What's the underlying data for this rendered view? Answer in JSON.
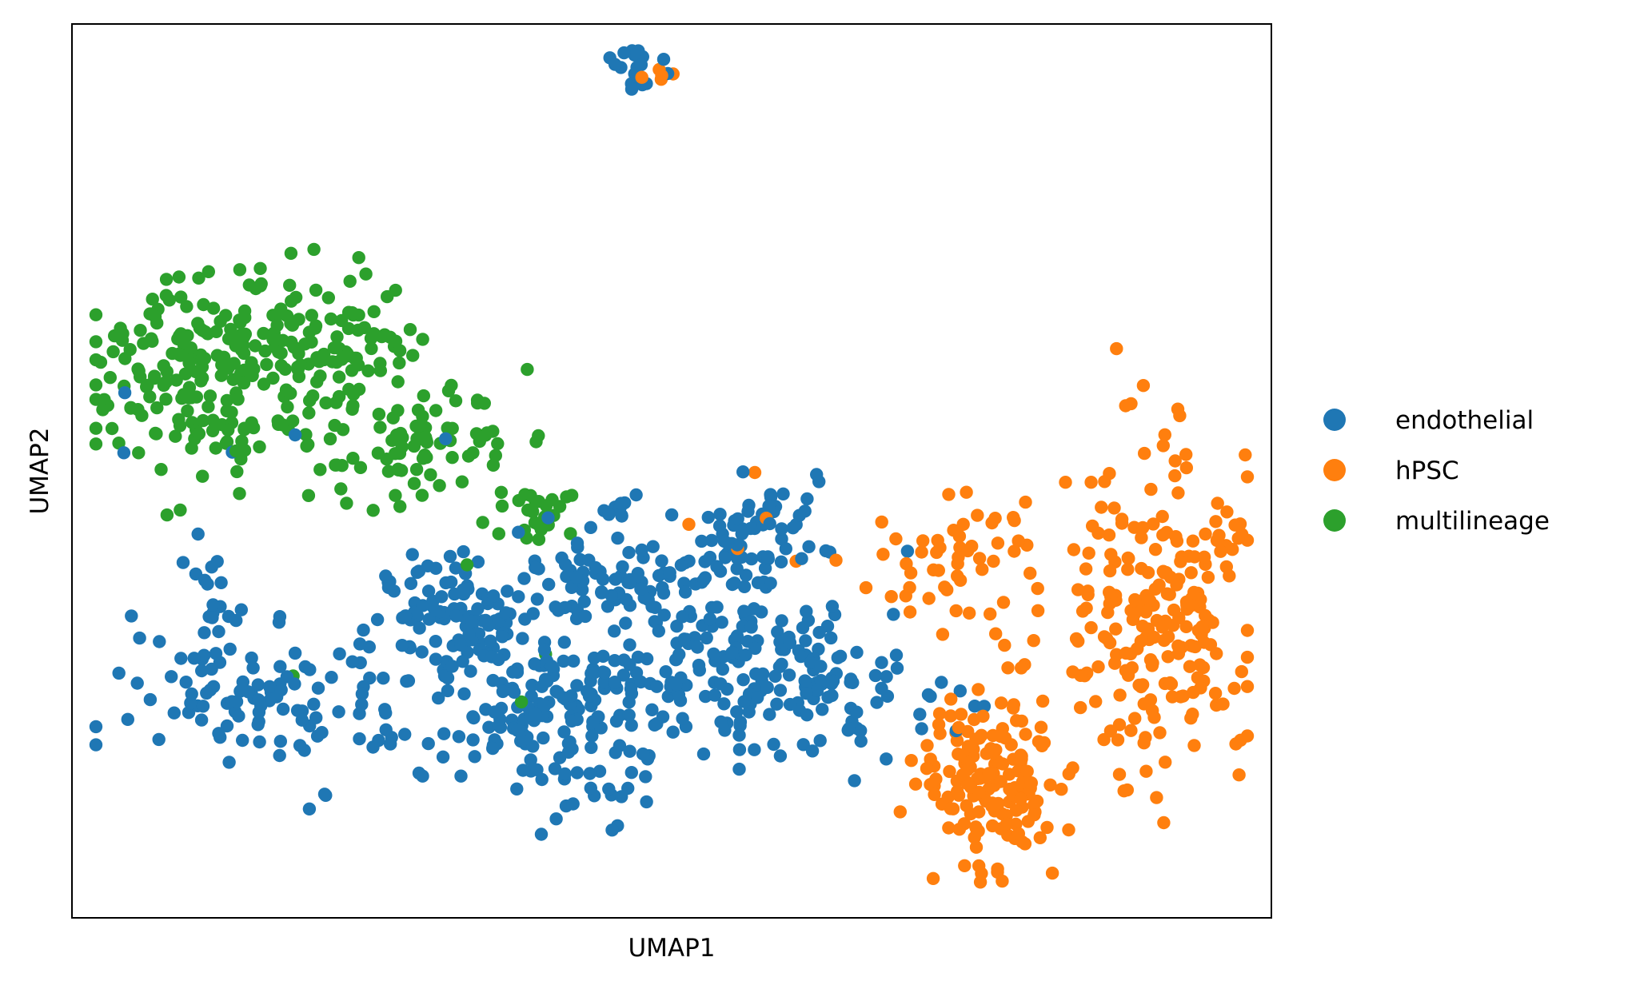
{
  "chart_data": {
    "type": "scatter",
    "title": "",
    "xlabel": "UMAP1",
    "ylabel": "UMAP2",
    "xlim": [
      0,
      100
    ],
    "ylim": [
      0,
      100
    ],
    "ticks": false,
    "grid": false,
    "legend_position": "right",
    "series": [
      {
        "name": "endothelial",
        "color": "#1f77b4"
      },
      {
        "name": "hPSC",
        "color": "#ff7f0e"
      },
      {
        "name": "multilineage",
        "color": "#2ca02c"
      }
    ],
    "clusters": [
      {
        "series": 1,
        "cx": 75,
        "cy": 40,
        "sx": 3.2,
        "sy": 4.5,
        "n": 50
      },
      {
        "series": 1,
        "cx": 76.5,
        "cy": 16,
        "sx": 3.0,
        "sy": 5.0,
        "n": 160
      },
      {
        "series": 1,
        "cx": 91,
        "cy": 34,
        "sx": 4.0,
        "sy": 8.5,
        "n": 230
      },
      {
        "series": 1,
        "cx": 62,
        "cy": 41,
        "sx": 8,
        "sy": 4,
        "n": 6
      },
      {
        "series": 1,
        "cx": 48.5,
        "cy": 94.6,
        "sx": 0.8,
        "sy": 0.6,
        "n": 5
      },
      {
        "series": 0,
        "cx": 46.5,
        "cy": 95.0,
        "sx": 1.0,
        "sy": 1.5,
        "n": 18
      },
      {
        "series": 0,
        "cx": 16,
        "cy": 24.5,
        "sx": 5.5,
        "sy": 4.5,
        "n": 110
      },
      {
        "series": 0,
        "cx": 11.5,
        "cy": 36,
        "sx": 1.5,
        "sy": 4.0,
        "n": 18
      },
      {
        "series": 0,
        "cx": 32,
        "cy": 33,
        "sx": 3.5,
        "sy": 3.8,
        "n": 110
      },
      {
        "series": 0,
        "cx": 40,
        "cy": 22.5,
        "sx": 5.0,
        "sy": 5.0,
        "n": 160
      },
      {
        "series": 0,
        "cx": 56,
        "cy": 29,
        "sx": 5.5,
        "sy": 5.0,
        "n": 170
      },
      {
        "series": 0,
        "cx": 45,
        "cy": 38,
        "sx": 5.0,
        "sy": 3.0,
        "n": 90
      },
      {
        "series": 0,
        "cx": 57,
        "cy": 42,
        "sx": 3.0,
        "sy": 3.0,
        "n": 60
      },
      {
        "series": 0,
        "cx": 66,
        "cy": 24,
        "sx": 3.5,
        "sy": 4.0,
        "n": 40
      },
      {
        "series": 0,
        "cx": 45.5,
        "cy": 46,
        "sx": 0.9,
        "sy": 1.0,
        "n": 7
      },
      {
        "series": 0,
        "cx": 12,
        "cy": 52,
        "sx": 8,
        "sy": 6,
        "n": 6
      },
      {
        "series": 2,
        "cx": 11,
        "cy": 61,
        "sx": 5.0,
        "sy": 5.5,
        "n": 210
      },
      {
        "series": 2,
        "cx": 22,
        "cy": 64,
        "sx": 4.0,
        "sy": 4.0,
        "n": 80
      },
      {
        "series": 2,
        "cx": 29,
        "cy": 53,
        "sx": 5.0,
        "sy": 3.0,
        "n": 85
      },
      {
        "series": 2,
        "cx": 38,
        "cy": 45.5,
        "sx": 2.0,
        "sy": 1.5,
        "n": 25
      },
      {
        "series": 2,
        "cx": 26,
        "cy": 40,
        "sx": 15,
        "sy": 10,
        "n": 5
      },
      {
        "series": 1,
        "cx": 61,
        "cy": 42,
        "sx": 6,
        "sy": 4,
        "n": 4
      }
    ]
  }
}
